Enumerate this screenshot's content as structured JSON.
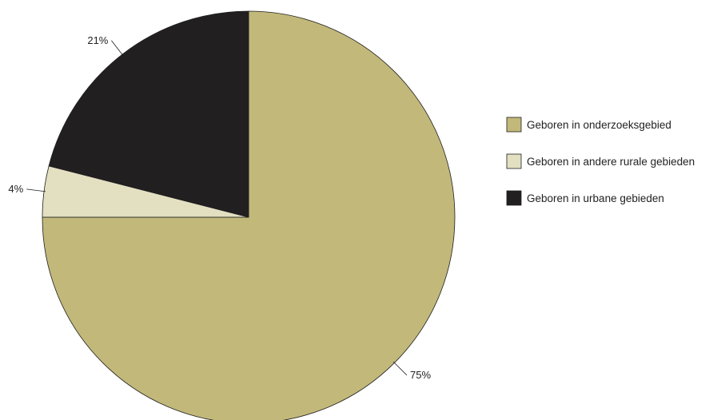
{
  "chart_data": {
    "type": "pie",
    "title": "",
    "slices": [
      {
        "label": "Geboren in onderzoeksgebied",
        "value": 75,
        "display": "75%",
        "color": "#c2b87a"
      },
      {
        "label": "Geboren in andere rurale gebieden",
        "value": 4,
        "display": "4%",
        "color": "#e3dfc1"
      },
      {
        "label": "Geboren in urbane gebieden",
        "value": 21,
        "display": "21%",
        "color": "#221f21"
      }
    ],
    "start_angle_deg": 0,
    "direction": "clockwise",
    "legend_position": "right"
  }
}
